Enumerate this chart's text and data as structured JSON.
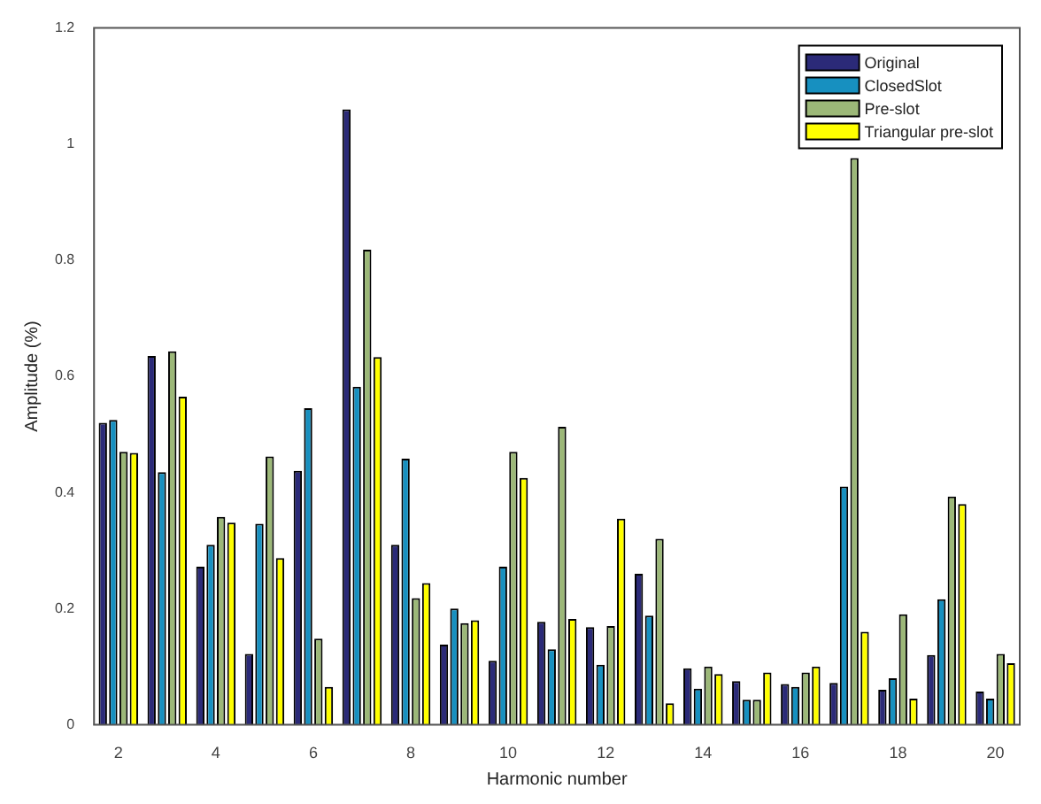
{
  "chart_data": {
    "type": "bar",
    "xlabel": "Harmonic number",
    "ylabel": "Amplitude (%)",
    "categories": [
      "2",
      null,
      "4",
      null,
      "6",
      null,
      "8",
      null,
      "10",
      null,
      "12",
      null,
      "14",
      null,
      "16",
      null,
      "18",
      null,
      "20"
    ],
    "series": [
      {
        "name": "Original",
        "color": "#2b2a78",
        "values": [
          0.52,
          0.635,
          0.272,
          0.122,
          0.437,
          1.06,
          0.31,
          0.138,
          0.11,
          0.177,
          0.168,
          0.26,
          0.097,
          0.075,
          0.07,
          0.072,
          0.06,
          0.12,
          0.057
        ]
      },
      {
        "name": "ClosedSlot",
        "color": "#1790c0",
        "values": [
          0.525,
          0.435,
          0.31,
          0.346,
          0.545,
          0.582,
          0.458,
          0.2,
          0.272,
          0.13,
          0.103,
          0.188,
          0.062,
          0.043,
          0.065,
          0.41,
          0.08,
          0.216,
          0.045
        ]
      },
      {
        "name": "Pre-slot",
        "color": "#9cb878",
        "values": [
          0.47,
          0.643,
          0.358,
          0.462,
          0.148,
          0.818,
          0.218,
          0.175,
          0.47,
          0.513,
          0.17,
          0.32,
          0.1,
          0.043,
          0.09,
          0.976,
          0.19,
          0.393,
          0.122
        ]
      },
      {
        "name": "Triangular pre-slot",
        "color": "#ffff00",
        "values": [
          0.468,
          0.565,
          0.348,
          0.287,
          0.065,
          0.633,
          0.244,
          0.18,
          0.425,
          0.182,
          0.355,
          0.037,
          0.087,
          0.09,
          0.1,
          0.16,
          0.045,
          0.38,
          0.106
        ]
      }
    ],
    "ylim": [
      0,
      1.2
    ],
    "yticks": [
      0,
      0.2,
      0.4,
      0.6,
      0.8,
      1,
      1.2
    ],
    "grid": false,
    "legend": "top right"
  }
}
